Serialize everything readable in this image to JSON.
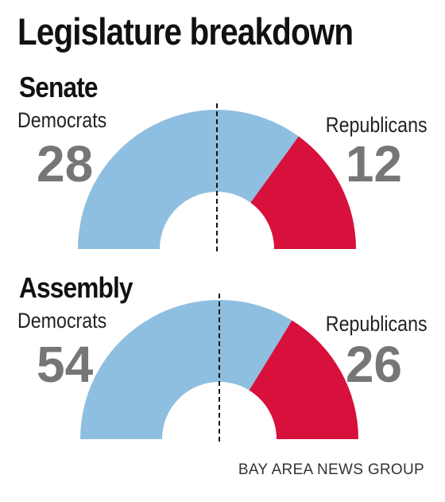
{
  "title": "Legislature breakdown",
  "source": "BAY AREA NEWS GROUP",
  "colors": {
    "democrats": "#8ebfe0",
    "republicans": "#d8103c",
    "count_text": "#767676",
    "majority_line": "#111111"
  },
  "chart_data": [
    {
      "type": "pie",
      "style": "half-donut",
      "title": "Senate",
      "categories": [
        "Democrats",
        "Republicans"
      ],
      "values": [
        28,
        12
      ],
      "labels": {
        "left": "Democrats",
        "right": "Republicans"
      },
      "counts": {
        "left": "28",
        "right": "12"
      },
      "majority_marker": "dashed vertical line at center"
    },
    {
      "type": "pie",
      "style": "half-donut",
      "title": "Assembly",
      "categories": [
        "Democrats",
        "Republicans"
      ],
      "values": [
        54,
        26
      ],
      "labels": {
        "left": "Democrats",
        "right": "Republicans"
      },
      "counts": {
        "left": "54",
        "right": "26"
      },
      "majority_marker": "dashed vertical line at center"
    }
  ]
}
